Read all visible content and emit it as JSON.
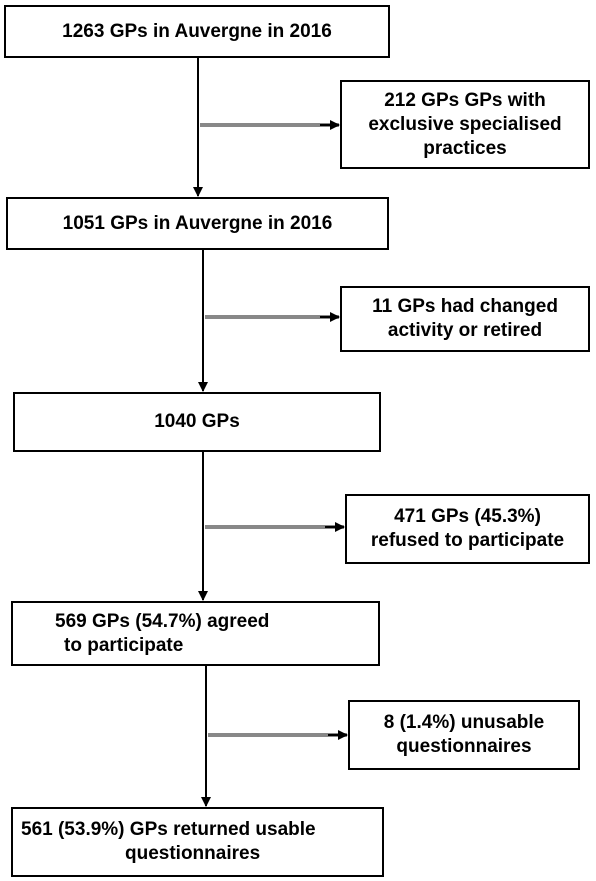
{
  "flowchart": {
    "main_steps": [
      {
        "lines": [
          "1263 GPs in Auvergne in 2016"
        ]
      },
      {
        "lines": [
          "1051 GPs in Auvergne in 2016"
        ]
      },
      {
        "lines": [
          "1040 GPs"
        ]
      },
      {
        "lines": [
          "569 GPs (54.7%) agreed",
          "to participate"
        ]
      },
      {
        "lines": [
          "561 (53.9%) GPs returned usable",
          "questionnaires"
        ]
      }
    ],
    "exclusions": [
      {
        "lines": [
          "212 GPs GPs with",
          "exclusive specialised",
          "practices"
        ]
      },
      {
        "lines": [
          "11 GPs had changed",
          "activity or retired"
        ]
      },
      {
        "lines": [
          "471 GPs (45.3%)",
          "refused to participate"
        ]
      },
      {
        "lines": [
          "8 (1.4%) unusable",
          "questionnaires"
        ]
      }
    ]
  }
}
